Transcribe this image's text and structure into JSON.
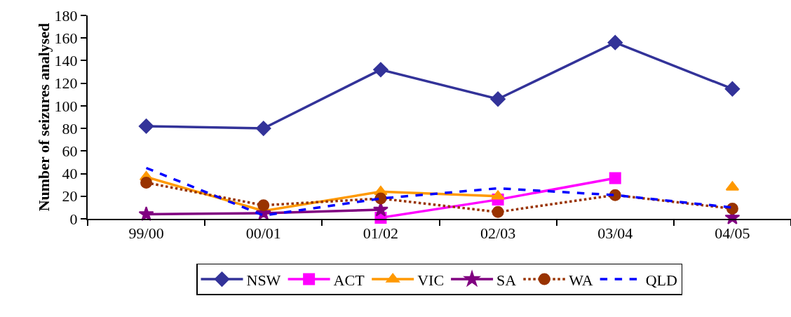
{
  "chart_data": {
    "type": "line",
    "ylabel": "Number of seizures analysed",
    "categories": [
      "99/00",
      "00/01",
      "01/02",
      "02/03",
      "03/04",
      "04/05"
    ],
    "ylim": [
      0,
      180
    ],
    "yticks": [
      0,
      20,
      40,
      60,
      80,
      100,
      120,
      140,
      160,
      180
    ],
    "grid": false,
    "legend": "bottom",
    "series": [
      {
        "name": "NSW",
        "color": "#333399",
        "marker": "diamond",
        "line_style": "solid",
        "values": [
          82,
          80,
          132,
          106,
          156,
          115
        ]
      },
      {
        "name": "ACT",
        "color": "#ff00ff",
        "marker": "square",
        "line_style": "solid",
        "values": [
          null,
          null,
          1,
          17,
          36,
          null
        ]
      },
      {
        "name": "VIC",
        "color": "#ff9900",
        "marker": "triangle",
        "line_style": "solid",
        "values": [
          37,
          7,
          24,
          20,
          null,
          28
        ]
      },
      {
        "name": "SA",
        "color": "#800080",
        "marker": "star",
        "line_style": "solid",
        "values": [
          4,
          5,
          8,
          null,
          null,
          1
        ]
      },
      {
        "name": "WA",
        "color": "#993300",
        "marker": "circle",
        "line_style": "dotted",
        "values": [
          32,
          12,
          18,
          6,
          21,
          9
        ]
      },
      {
        "name": "QLD",
        "color": "#0000ff",
        "marker": "none",
        "line_style": "dashed",
        "values": [
          45,
          3,
          18,
          27,
          21,
          10
        ]
      }
    ]
  }
}
